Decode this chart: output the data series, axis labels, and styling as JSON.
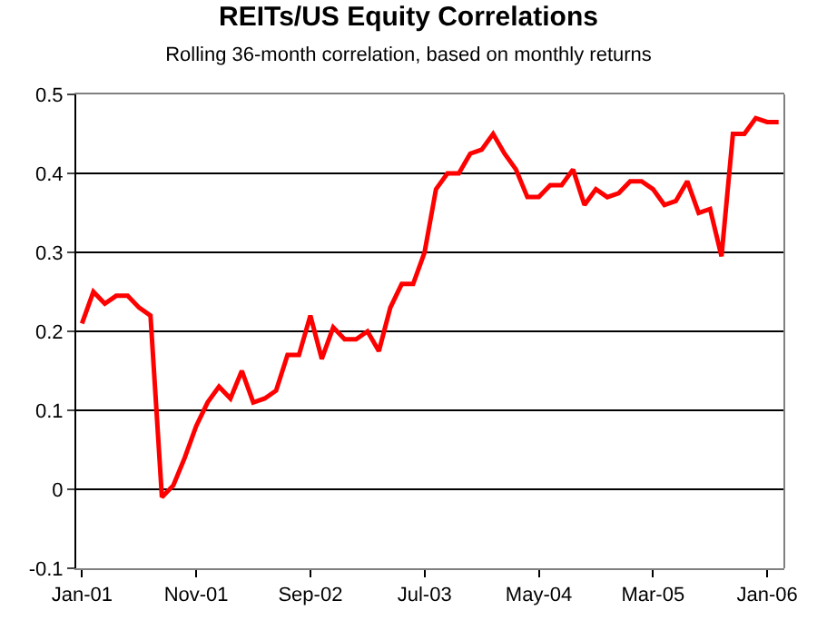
{
  "chart_data": {
    "type": "line",
    "title": "REITs/US Equity Correlations",
    "subtitle": "Rolling 36-month correlation, based on monthly returns",
    "categories": [
      "Jan-01",
      null,
      null,
      null,
      null,
      null,
      null,
      null,
      null,
      null,
      "Nov-01",
      null,
      null,
      null,
      null,
      null,
      null,
      null,
      null,
      null,
      "Sep-02",
      null,
      null,
      null,
      null,
      null,
      null,
      null,
      null,
      null,
      "Jul-03",
      null,
      null,
      null,
      null,
      null,
      null,
      null,
      null,
      null,
      "May-04",
      null,
      null,
      null,
      null,
      null,
      null,
      null,
      null,
      null,
      "Mar-05",
      null,
      null,
      null,
      null,
      null,
      null,
      null,
      null,
      null,
      "Jan-06",
      null
    ],
    "series": [
      {
        "color": "#ff0000",
        "values": [
          0.21,
          0.25,
          0.235,
          0.245,
          0.245,
          0.23,
          0.22,
          -0.01,
          0.005,
          0.04,
          0.08,
          0.11,
          0.13,
          0.115,
          0.15,
          0.11,
          0.115,
          0.125,
          0.17,
          0.17,
          0.22,
          0.165,
          0.205,
          0.19,
          0.19,
          0.2,
          0.175,
          0.23,
          0.26,
          0.26,
          0.3,
          0.38,
          0.4,
          0.4,
          0.425,
          0.43,
          0.45,
          0.425,
          0.405,
          0.37,
          0.37,
          0.385,
          0.385,
          0.405,
          0.36,
          0.38,
          0.37,
          0.375,
          0.39,
          0.39,
          0.38,
          0.36,
          0.365,
          0.39,
          0.35,
          0.355,
          0.295,
          0.45,
          0.45,
          0.47,
          0.465,
          0.465
        ]
      }
    ],
    "ylim": [
      -0.1,
      0.5
    ],
    "yticks": [
      -0.1,
      0,
      0.1,
      0.2,
      0.3,
      0.4,
      0.5
    ],
    "grid": "y",
    "marker": "none",
    "line_style": "solid"
  }
}
